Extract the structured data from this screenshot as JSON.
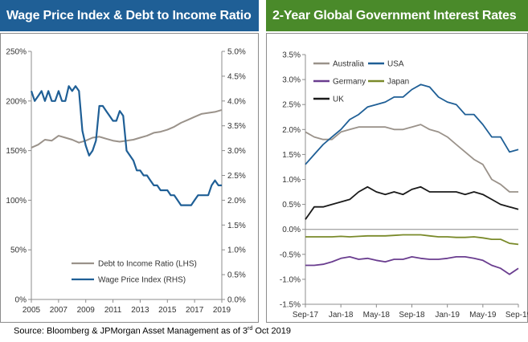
{
  "chart_data": [
    {
      "type": "line",
      "title": "Wage Price Index & Debt to Income Ratio (%)",
      "header_color": "#1f5f96",
      "x_ticks": [
        "2005",
        "2007",
        "2009",
        "2011",
        "2013",
        "2015",
        "2017",
        "2019"
      ],
      "xlim": [
        2005,
        2019
      ],
      "y_left": {
        "ticks": [
          "0%",
          "50%",
          "100%",
          "150%",
          "200%",
          "250%"
        ],
        "ylim": [
          0,
          250
        ]
      },
      "y_right": {
        "ticks": [
          "0.0%",
          "0.5%",
          "1.0%",
          "1.5%",
          "2.0%",
          "2.5%",
          "3.0%",
          "3.5%",
          "4.0%",
          "4.5%",
          "5.0%"
        ],
        "ylim": [
          0,
          5
        ]
      },
      "grid": false,
      "legend_position": "bottom-center",
      "series": [
        {
          "name": "Debt to Income Ratio (LHS)",
          "axis": "left",
          "color": "#9a928a",
          "x": [
            2005.0,
            2005.5,
            2006.0,
            2006.5,
            2007.0,
            2007.5,
            2008.0,
            2008.5,
            2009.0,
            2009.5,
            2010.0,
            2010.5,
            2011.0,
            2011.5,
            2012.0,
            2012.5,
            2013.0,
            2013.5,
            2014.0,
            2014.5,
            2015.0,
            2015.5,
            2016.0,
            2016.5,
            2017.0,
            2017.5,
            2018.0,
            2018.5,
            2019.0
          ],
          "values": [
            153,
            156,
            161,
            160,
            165,
            163,
            161,
            158,
            160,
            163,
            164,
            162,
            160,
            159,
            160,
            161,
            163,
            165,
            168,
            169,
            171,
            174,
            178,
            181,
            184,
            187,
            188,
            189,
            191
          ]
        },
        {
          "name": "Wage Price Index (RHS)",
          "axis": "right",
          "color": "#1f5f96",
          "x": [
            2005.0,
            2005.25,
            2005.5,
            2005.75,
            2006.0,
            2006.25,
            2006.5,
            2006.75,
            2007.0,
            2007.25,
            2007.5,
            2007.75,
            2008.0,
            2008.25,
            2008.5,
            2008.75,
            2009.0,
            2009.25,
            2009.5,
            2009.75,
            2010.0,
            2010.25,
            2010.5,
            2010.75,
            2011.0,
            2011.25,
            2011.5,
            2011.75,
            2012.0,
            2012.25,
            2012.5,
            2012.75,
            2013.0,
            2013.25,
            2013.5,
            2013.75,
            2014.0,
            2014.25,
            2014.5,
            2014.75,
            2015.0,
            2015.25,
            2015.5,
            2015.75,
            2016.0,
            2016.25,
            2016.5,
            2016.75,
            2017.0,
            2017.25,
            2017.5,
            2017.75,
            2018.0,
            2018.25,
            2018.5,
            2018.75,
            2019.0
          ],
          "values": [
            4.2,
            4.0,
            4.1,
            4.2,
            4.0,
            4.2,
            4.0,
            4.0,
            4.2,
            4.0,
            4.0,
            4.3,
            4.2,
            4.3,
            4.2,
            3.4,
            3.1,
            2.9,
            3.0,
            3.2,
            3.9,
            3.9,
            3.8,
            3.7,
            3.6,
            3.6,
            3.8,
            3.7,
            3.0,
            2.9,
            2.8,
            2.6,
            2.6,
            2.5,
            2.5,
            2.4,
            2.3,
            2.3,
            2.2,
            2.2,
            2.2,
            2.1,
            2.1,
            2.0,
            1.9,
            1.9,
            1.9,
            1.9,
            2.0,
            2.1,
            2.1,
            2.1,
            2.1,
            2.3,
            2.4,
            2.3,
            2.3
          ]
        }
      ]
    },
    {
      "type": "line",
      "title": "2-Year Global Government Interest Rates",
      "header_color": "#4a8a2a",
      "x_ticks": [
        "Sep-17",
        "Jan-18",
        "May-18",
        "Sep-18",
        "Jan-19",
        "May-19",
        "Sep-19"
      ],
      "xlim": [
        "2017-09",
        "2019-09"
      ],
      "y_ticks": [
        "-1.5%",
        "-1.0%",
        "-0.5%",
        "0.0%",
        "0.5%",
        "1.0%",
        "1.5%",
        "2.0%",
        "2.5%",
        "3.0%",
        "3.5%"
      ],
      "ylim": [
        -1.5,
        3.5
      ],
      "grid": false,
      "legend_position": "top-left",
      "series": [
        {
          "name": "Australia",
          "color": "#9a928a",
          "x": [
            "2017-09",
            "2017-10",
            "2017-11",
            "2017-12",
            "2018-01",
            "2018-02",
            "2018-03",
            "2018-04",
            "2018-05",
            "2018-06",
            "2018-07",
            "2018-08",
            "2018-09",
            "2018-10",
            "2018-11",
            "2018-12",
            "2019-01",
            "2019-02",
            "2019-03",
            "2019-04",
            "2019-05",
            "2019-06",
            "2019-07",
            "2019-08",
            "2019-09"
          ],
          "values": [
            1.95,
            1.85,
            1.8,
            1.8,
            1.95,
            2.0,
            2.05,
            2.05,
            2.05,
            2.05,
            2.0,
            2.0,
            2.05,
            2.1,
            2.0,
            1.95,
            1.85,
            1.7,
            1.55,
            1.4,
            1.3,
            1.0,
            0.9,
            0.75,
            0.75
          ]
        },
        {
          "name": "USA",
          "color": "#1f5f96",
          "x": [
            "2017-09",
            "2017-10",
            "2017-11",
            "2017-12",
            "2018-01",
            "2018-02",
            "2018-03",
            "2018-04",
            "2018-05",
            "2018-06",
            "2018-07",
            "2018-08",
            "2018-09",
            "2018-10",
            "2018-11",
            "2018-12",
            "2019-01",
            "2019-02",
            "2019-03",
            "2019-04",
            "2019-05",
            "2019-06",
            "2019-07",
            "2019-08",
            "2019-09"
          ],
          "values": [
            1.3,
            1.5,
            1.7,
            1.85,
            2.0,
            2.2,
            2.3,
            2.45,
            2.5,
            2.55,
            2.65,
            2.65,
            2.8,
            2.9,
            2.85,
            2.65,
            2.55,
            2.5,
            2.3,
            2.3,
            2.1,
            1.85,
            1.85,
            1.55,
            1.6
          ]
        },
        {
          "name": "Germany",
          "color": "#6a3d8f",
          "x": [
            "2017-09",
            "2017-10",
            "2017-11",
            "2017-12",
            "2018-01",
            "2018-02",
            "2018-03",
            "2018-04",
            "2018-05",
            "2018-06",
            "2018-07",
            "2018-08",
            "2018-09",
            "2018-10",
            "2018-11",
            "2018-12",
            "2019-01",
            "2019-02",
            "2019-03",
            "2019-04",
            "2019-05",
            "2019-06",
            "2019-07",
            "2019-08",
            "2019-09"
          ],
          "values": [
            -0.72,
            -0.72,
            -0.7,
            -0.65,
            -0.58,
            -0.55,
            -0.6,
            -0.58,
            -0.62,
            -0.65,
            -0.6,
            -0.6,
            -0.55,
            -0.58,
            -0.6,
            -0.6,
            -0.58,
            -0.55,
            -0.55,
            -0.58,
            -0.62,
            -0.72,
            -0.78,
            -0.9,
            -0.78
          ]
        },
        {
          "name": "Japan",
          "color": "#7a8a2a",
          "x": [
            "2017-09",
            "2017-10",
            "2017-11",
            "2017-12",
            "2018-01",
            "2018-02",
            "2018-03",
            "2018-04",
            "2018-05",
            "2018-06",
            "2018-07",
            "2018-08",
            "2018-09",
            "2018-10",
            "2018-11",
            "2018-12",
            "2019-01",
            "2019-02",
            "2019-03",
            "2019-04",
            "2019-05",
            "2019-06",
            "2019-07",
            "2019-08",
            "2019-09"
          ],
          "values": [
            -0.15,
            -0.15,
            -0.15,
            -0.15,
            -0.14,
            -0.15,
            -0.14,
            -0.13,
            -0.13,
            -0.13,
            -0.12,
            -0.11,
            -0.11,
            -0.11,
            -0.13,
            -0.15,
            -0.15,
            -0.16,
            -0.16,
            -0.15,
            -0.17,
            -0.2,
            -0.2,
            -0.28,
            -0.3
          ]
        },
        {
          "name": "UK",
          "color": "#1a1a1a",
          "x": [
            "2017-09",
            "2017-10",
            "2017-11",
            "2017-12",
            "2018-01",
            "2018-02",
            "2018-03",
            "2018-04",
            "2018-05",
            "2018-06",
            "2018-07",
            "2018-08",
            "2018-09",
            "2018-10",
            "2018-11",
            "2018-12",
            "2019-01",
            "2019-02",
            "2019-03",
            "2019-04",
            "2019-05",
            "2019-06",
            "2019-07",
            "2019-08",
            "2019-09"
          ],
          "values": [
            0.2,
            0.45,
            0.45,
            0.5,
            0.55,
            0.6,
            0.75,
            0.85,
            0.75,
            0.7,
            0.75,
            0.7,
            0.8,
            0.85,
            0.75,
            0.75,
            0.75,
            0.75,
            0.7,
            0.75,
            0.7,
            0.6,
            0.5,
            0.45,
            0.4
          ]
        }
      ]
    }
  ],
  "footer": {
    "source_prefix": "Source: Bloomberg & JPMorgan Asset Management as of 3",
    "source_sup": "rd",
    "source_suffix": " Oct 2019"
  }
}
